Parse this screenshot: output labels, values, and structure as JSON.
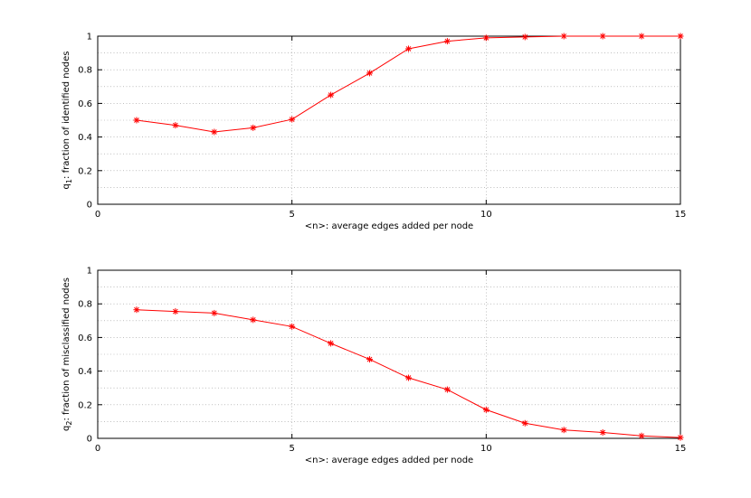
{
  "chart_data": [
    {
      "type": "line",
      "title": "",
      "xlabel": "<n>: average edges added per node",
      "ylabel": "q1: fraction of identified nodes",
      "ylabel_main": "q",
      "ylabel_sub": "1",
      "ylabel_rest": ": fraction of identified nodes",
      "xlim": [
        0,
        15
      ],
      "ylim": [
        0,
        1
      ],
      "xticks": [
        0,
        5,
        10,
        15
      ],
      "xtick_labels": [
        "0",
        "5",
        "10",
        "15"
      ],
      "yticks": [
        0,
        0.2,
        0.4,
        0.6,
        0.8,
        1
      ],
      "ytick_labels": [
        "0",
        "0.2",
        "0.4",
        "0.6",
        "0.8",
        "1"
      ],
      "grid": true,
      "marker": "asterisk",
      "color": "#ff0000",
      "x": [
        1,
        2,
        3,
        4,
        5,
        6,
        7,
        8,
        9,
        10,
        11,
        12,
        13,
        14,
        15
      ],
      "y": [
        0.5,
        0.47,
        0.43,
        0.455,
        0.505,
        0.65,
        0.78,
        0.925,
        0.97,
        0.99,
        0.995,
        1.0,
        1.0,
        1.0,
        1.0
      ]
    },
    {
      "type": "line",
      "title": "",
      "xlabel": "<n>: average edges added per node",
      "ylabel": "q2: fraction of misclassified nodes",
      "ylabel_main": "q",
      "ylabel_sub": "2",
      "ylabel_rest": ": fraction of misclassified nodes",
      "xlim": [
        0,
        15
      ],
      "ylim": [
        0,
        1
      ],
      "xticks": [
        0,
        5,
        10,
        15
      ],
      "xtick_labels": [
        "0",
        "5",
        "10",
        "15"
      ],
      "yticks": [
        0,
        0.2,
        0.4,
        0.6,
        0.8,
        1
      ],
      "ytick_labels": [
        "0",
        "0.2",
        "0.4",
        "0.6",
        "0.8",
        "1"
      ],
      "grid": true,
      "marker": "asterisk",
      "color": "#ff0000",
      "x": [
        1,
        2,
        3,
        4,
        5,
        6,
        7,
        8,
        9,
        10,
        11,
        12,
        13,
        14,
        15
      ],
      "y": [
        0.765,
        0.755,
        0.745,
        0.705,
        0.665,
        0.565,
        0.47,
        0.36,
        0.29,
        0.17,
        0.09,
        0.05,
        0.035,
        0.015,
        0.005
      ]
    }
  ]
}
